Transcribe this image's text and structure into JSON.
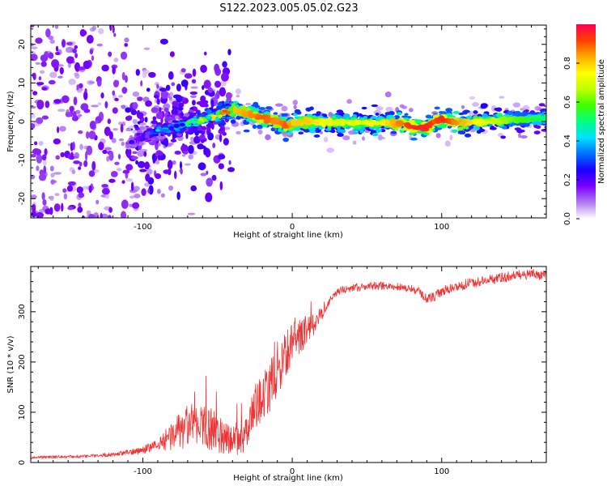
{
  "page": {
    "title": "S122.2023.005.05.02.G23"
  },
  "chart_data": [
    {
      "type": "heatmap",
      "title": "S122.2023.005.05.02.G23",
      "xlabel": "Height of straight line (km)",
      "ylabel": "Frequency (Hz)",
      "xlim": [
        -175,
        170
      ],
      "ylim": [
        -25,
        25
      ],
      "xticks": [
        -100,
        0,
        100
      ],
      "xtick_labels": [
        "-100",
        "0",
        "100"
      ],
      "yticks": [
        -20,
        -10,
        0,
        10,
        20
      ],
      "ytick_labels": [
        "-20",
        "-10",
        "0",
        "10",
        "20"
      ],
      "grid": false,
      "colorbar": {
        "label": "Normalized spectral amplitude",
        "range": [
          0,
          1
        ],
        "ticks": [
          0.0,
          0.2,
          0.4,
          0.6,
          0.8
        ],
        "tick_labels": [
          "0.0",
          "0.2",
          "0.4",
          "0.6",
          "0.8"
        ],
        "colors": [
          "#ffffff",
          "#b07bf0",
          "#7a00ff",
          "#1a00ff",
          "#0070ff",
          "#00e0ff",
          "#00ff80",
          "#40ff00",
          "#c0ff00",
          "#ffff00",
          "#ffaa00",
          "#ff4000",
          "#ff0050"
        ]
      },
      "ridge": {
        "x": [
          -110,
          -100,
          -90,
          -80,
          -70,
          -60,
          -50,
          -45,
          -40,
          -30,
          -20,
          -10,
          -5,
          0,
          10,
          30,
          60,
          75,
          80,
          90,
          95,
          100,
          110,
          130,
          150,
          170
        ],
        "freq": [
          -6,
          -4,
          -2.5,
          -1.5,
          -0.5,
          0.5,
          1.5,
          2.5,
          3,
          2,
          1,
          0,
          -1,
          -0.5,
          0,
          -0.2,
          -0.5,
          -0.5,
          -1.5,
          -1.5,
          0,
          0.5,
          -0.3,
          0,
          0.5,
          0.8
        ],
        "amplitude": [
          0.15,
          0.2,
          0.3,
          0.35,
          0.4,
          0.5,
          0.6,
          0.7,
          0.8,
          0.85,
          0.9,
          0.85,
          0.9,
          0.8,
          0.8,
          0.7,
          0.75,
          0.9,
          0.95,
          0.95,
          0.9,
          0.95,
          0.85,
          0.7,
          0.6,
          0.5
        ]
      }
    },
    {
      "type": "line",
      "xlabel": "Height of straight line (km)",
      "ylabel": "SNR (10 * v/v)",
      "xlim": [
        -175,
        170
      ],
      "ylim": [
        0,
        390
      ],
      "xticks": [
        -100,
        0,
        100
      ],
      "xtick_labels": [
        "-100",
        "0",
        "100"
      ],
      "yticks": [
        0,
        100,
        200,
        300
      ],
      "ytick_labels": [
        "0",
        "100",
        "200",
        "300"
      ],
      "grid": false,
      "color": "#ee3333",
      "x": [
        -175,
        -160,
        -140,
        -120,
        -110,
        -100,
        -90,
        -80,
        -70,
        -60,
        -50,
        -40,
        -35,
        -30,
        -25,
        -20,
        -15,
        -10,
        -5,
        0,
        5,
        10,
        15,
        20,
        25,
        30,
        40,
        50,
        60,
        70,
        80,
        85,
        90,
        95,
        100,
        110,
        120,
        130,
        140,
        150,
        160,
        170
      ],
      "y": [
        10,
        11,
        12,
        16,
        20,
        25,
        35,
        55,
        70,
        75,
        60,
        45,
        40,
        60,
        110,
        130,
        150,
        185,
        210,
        240,
        250,
        265,
        275,
        300,
        325,
        340,
        348,
        350,
        352,
        350,
        345,
        340,
        325,
        330,
        340,
        350,
        358,
        362,
        368,
        372,
        375,
        372
      ],
      "noise": [
        3,
        3,
        3,
        4,
        5,
        8,
        12,
        30,
        45,
        45,
        40,
        30,
        25,
        35,
        45,
        45,
        50,
        55,
        45,
        40,
        35,
        30,
        25,
        15,
        10,
        8,
        8,
        8,
        8,
        8,
        8,
        8,
        10,
        10,
        10,
        10,
        10,
        10,
        10,
        10,
        10,
        10
      ]
    }
  ]
}
